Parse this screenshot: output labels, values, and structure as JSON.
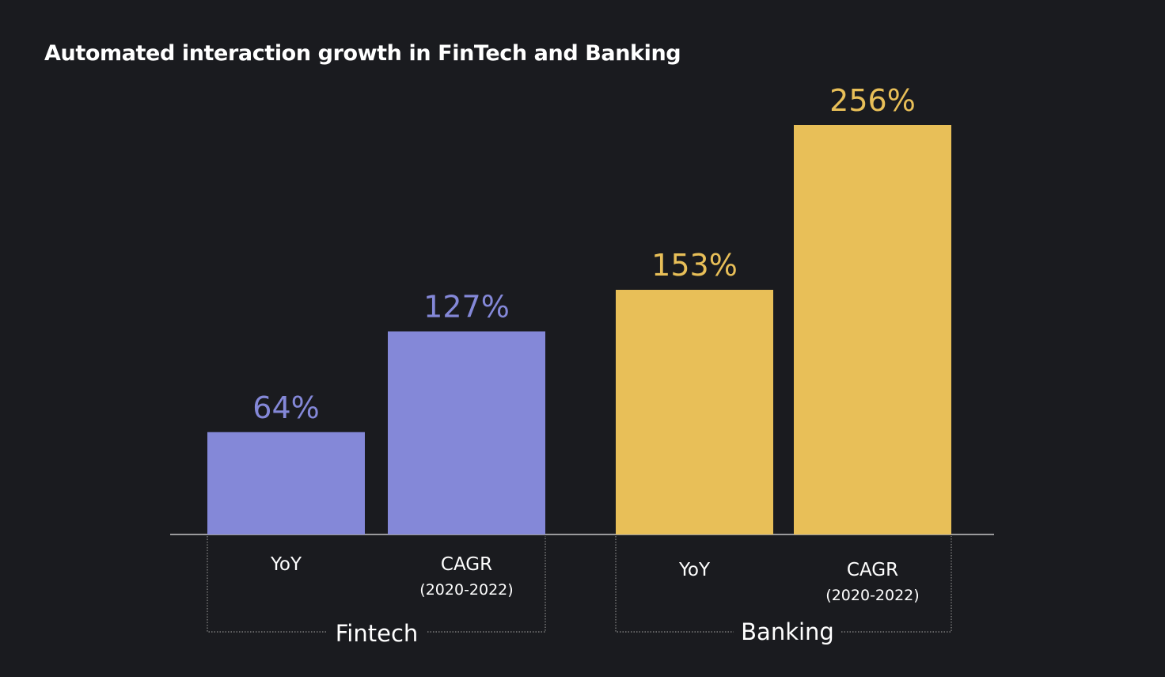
{
  "chart_data": {
    "type": "bar",
    "title": "Automated interaction growth in FinTech and Banking",
    "groups": [
      {
        "name": "Fintech",
        "color": "#8488d8",
        "bars": [
          {
            "category": "YoY",
            "sublabel": "",
            "value": 64,
            "label": "64%"
          },
          {
            "category": "CAGR",
            "sublabel": "(2020-2022)",
            "value": 127,
            "label": "127%"
          }
        ]
      },
      {
        "name": "Banking",
        "color": "#e8bf58",
        "bars": [
          {
            "category": "YoY",
            "sublabel": "",
            "value": 153,
            "label": "153%"
          },
          {
            "category": "CAGR",
            "sublabel": "(2020-2022)",
            "value": 256,
            "label": "256%"
          }
        ]
      }
    ],
    "ylim": [
      0,
      256
    ],
    "xlabel": "",
    "ylabel": "",
    "grid": false,
    "legend": "none"
  },
  "colors": {
    "background": "#1a1b1f",
    "baseline": "#e6e6e6",
    "bracket": "#8a8a8a",
    "text": "#ffffff"
  }
}
